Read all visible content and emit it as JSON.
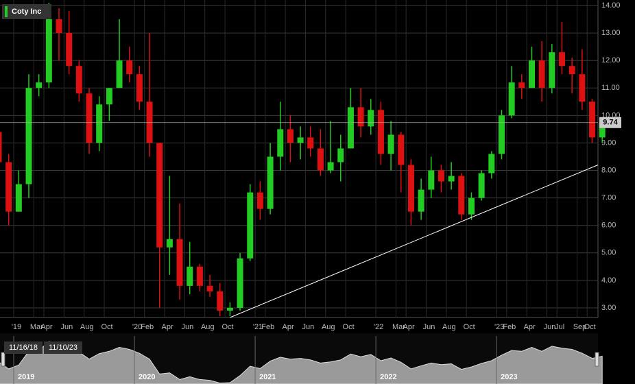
{
  "chart_data": {
    "type": "candlestick",
    "title": "Coty Inc",
    "color_up": "#22cc22",
    "color_down": "#dd1111",
    "categories": [
      null,
      null,
      "'19",
      null,
      "Mar",
      "Apr",
      null,
      "Jun",
      null,
      "Aug",
      null,
      "Oct",
      null,
      null,
      "'20",
      "Feb",
      null,
      "Apr",
      null,
      "Jun",
      null,
      "Aug",
      null,
      "Oct",
      null,
      null,
      "'21",
      "Feb",
      null,
      "Apr",
      null,
      "Jun",
      null,
      "Aug",
      null,
      "Oct",
      null,
      null,
      "'22",
      null,
      "Mar",
      "Apr",
      null,
      "Jun",
      null,
      "Aug",
      null,
      "Oct",
      null,
      null,
      "'23",
      "Feb",
      null,
      "Apr",
      null,
      "Jun",
      "Jul",
      null,
      "Sep",
      "Oct",
      null
    ],
    "open": [
      9.4,
      8.3,
      6.5,
      7.5,
      11.0,
      11.2,
      13.5,
      13.0,
      11.8,
      10.8,
      9.0,
      10.4,
      11.0,
      12.0,
      11.5,
      10.5,
      9.0,
      5.2,
      5.5,
      3.8,
      4.5,
      3.8,
      3.6,
      2.9,
      3.0,
      4.8,
      7.2,
      6.6,
      8.5,
      9.5,
      9.0,
      9.2,
      8.8,
      8.0,
      8.3,
      8.8,
      10.3,
      9.6,
      10.2,
      8.6,
      9.3,
      8.2,
      6.5,
      7.3,
      8.0,
      7.6,
      7.8,
      6.4,
      7.0,
      7.9,
      8.6,
      10.0,
      11.2,
      11.0,
      12.0,
      11.0,
      12.3,
      11.8,
      11.5,
      10.5,
      9.2
    ],
    "high": [
      9.5,
      8.6,
      8.0,
      11.5,
      11.5,
      14.1,
      13.9,
      13.8,
      12.0,
      11.0,
      10.7,
      11.0,
      13.5,
      12.5,
      11.8,
      13.0,
      9.0,
      7.8,
      6.8,
      5.4,
      4.6,
      4.2,
      3.9,
      3.2,
      5.0,
      7.5,
      7.6,
      9.0,
      10.5,
      10.0,
      9.6,
      9.6,
      9.5,
      9.8,
      9.3,
      11.0,
      11.0,
      10.6,
      10.5,
      9.8,
      9.4,
      8.4,
      7.7,
      8.5,
      8.2,
      8.3,
      7.9,
      7.2,
      8.0,
      8.7,
      10.2,
      11.8,
      11.5,
      12.5,
      12.7,
      12.6,
      13.4,
      12.1,
      12.4,
      10.6,
      9.9
    ],
    "low": [
      7.8,
      6.0,
      6.5,
      7.0,
      10.7,
      11.0,
      12.0,
      11.5,
      10.5,
      8.6,
      8.7,
      9.8,
      11.0,
      11.2,
      10.2,
      8.5,
      3.0,
      4.2,
      3.3,
      3.5,
      3.6,
      3.4,
      2.7,
      2.7,
      2.9,
      4.7,
      6.2,
      6.4,
      8.0,
      8.3,
      8.4,
      8.5,
      7.8,
      7.9,
      7.6,
      8.8,
      9.2,
      9.3,
      8.2,
      8.0,
      7.2,
      6.0,
      6.2,
      7.0,
      7.2,
      7.3,
      6.2,
      6.2,
      6.9,
      7.7,
      8.4,
      9.9,
      10.6,
      11.0,
      10.5,
      10.8,
      11.5,
      10.8,
      10.2,
      9.0,
      9.0
    ],
    "close": [
      8.3,
      6.5,
      7.5,
      11.0,
      11.2,
      13.5,
      13.0,
      11.8,
      10.8,
      9.0,
      10.4,
      11.0,
      12.0,
      11.5,
      10.5,
      9.0,
      5.2,
      5.5,
      3.8,
      4.5,
      3.8,
      3.6,
      2.9,
      3.0,
      4.8,
      7.2,
      6.6,
      8.5,
      9.5,
      9.0,
      9.2,
      8.8,
      8.0,
      8.3,
      8.8,
      10.3,
      9.6,
      10.2,
      8.6,
      9.3,
      8.2,
      6.5,
      7.3,
      8.0,
      7.6,
      7.8,
      6.4,
      7.0,
      7.9,
      8.6,
      10.0,
      11.2,
      11.0,
      12.0,
      11.0,
      12.3,
      11.8,
      11.5,
      10.5,
      9.2,
      9.74
    ],
    "ylim": [
      2.65,
      14.2
    ],
    "yticks": [
      {
        "value": 3,
        "label": "3.00"
      },
      {
        "value": 4,
        "label": "4.00"
      },
      {
        "value": 5,
        "label": "5.00"
      },
      {
        "value": 6,
        "label": "6.00"
      },
      {
        "value": 7,
        "label": "7.00"
      },
      {
        "value": 8,
        "label": "8.00"
      },
      {
        "value": 9,
        "label": "9.00"
      },
      {
        "value": 10,
        "label": "10.00"
      },
      {
        "value": 11,
        "label": "11.00"
      },
      {
        "value": 12,
        "label": "12.00"
      },
      {
        "value": 13,
        "label": "13.00"
      },
      {
        "value": 14,
        "label": "14.00"
      }
    ],
    "grid": true,
    "last_value": 9.74,
    "trendline": [
      2.65,
      8.2
    ]
  },
  "navigator": {
    "start_label": "11/16/18",
    "end_label": "11/10/23",
    "years": [
      "2019",
      "2020",
      "2021",
      "2022",
      "2023"
    ]
  }
}
